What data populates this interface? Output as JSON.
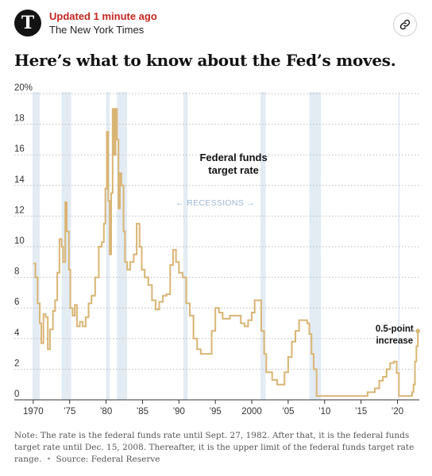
{
  "header": {
    "updated": "Updated 1 minute ago",
    "publisher": "The New York Times",
    "logo_glyph": "T",
    "link_icon": "link-icon"
  },
  "headline": "Here’s what to know about the Fed’s moves.",
  "chart_data": {
    "type": "line",
    "title": "",
    "series_label": "Federal funds target rate",
    "series_label_lines": [
      "Federal funds",
      "target rate"
    ],
    "recession_label": "RECESSIONS",
    "annotation_lines": [
      "0.5-point",
      "increase"
    ],
    "line_color": "#d9b574",
    "recession_color": "#e3ebf3",
    "xlabel": "",
    "ylabel": "",
    "xlim": [
      1969.8,
      2023.0
    ],
    "ylim": [
      0,
      20
    ],
    "grid": "horizontal-dotted",
    "y_ticks": [
      0,
      2,
      4,
      6,
      8,
      10,
      12,
      14,
      16,
      18,
      20
    ],
    "y_tick_labels": [
      "0",
      "2",
      "4",
      "6",
      "8",
      "10",
      "12",
      "14",
      "16",
      "18",
      "20%"
    ],
    "x_ticks": [
      1970,
      1975,
      1980,
      1985,
      1990,
      1995,
      2000,
      2005,
      2010,
      2015,
      2020
    ],
    "x_tick_labels": [
      "1970",
      "’75",
      "’80",
      "’85",
      "’90",
      "’95",
      "2000",
      "’05",
      "’10",
      "’15",
      "’20"
    ],
    "recessions": [
      [
        1969.9,
        1970.9
      ],
      [
        1973.9,
        1975.2
      ],
      [
        1980.0,
        1980.5
      ],
      [
        1981.5,
        1982.9
      ],
      [
        1990.6,
        1991.2
      ],
      [
        2001.2,
        2001.9
      ],
      [
        2007.9,
        2009.5
      ],
      [
        2020.1,
        2020.3
      ]
    ],
    "x": [
      1970.0,
      1970.3,
      1970.6,
      1970.9,
      1971.1,
      1971.4,
      1971.7,
      1972.0,
      1972.3,
      1972.7,
      1973.0,
      1973.3,
      1973.6,
      1973.9,
      1974.1,
      1974.4,
      1974.6,
      1974.9,
      1975.1,
      1975.4,
      1975.7,
      1976.0,
      1976.4,
      1976.8,
      1977.2,
      1977.6,
      1978.0,
      1978.5,
      1979.0,
      1979.4,
      1979.7,
      1979.9,
      1980.1,
      1980.3,
      1980.5,
      1980.7,
      1980.9,
      1981.1,
      1981.3,
      1981.5,
      1981.7,
      1981.9,
      1982.1,
      1982.4,
      1982.6,
      1982.9,
      1983.3,
      1983.8,
      1984.2,
      1984.6,
      1984.9,
      1985.3,
      1985.8,
      1986.3,
      1986.8,
      1987.3,
      1987.8,
      1988.3,
      1988.8,
      1989.2,
      1989.6,
      1990.0,
      1990.5,
      1991.0,
      1991.5,
      1992.0,
      1992.5,
      1993.0,
      1994.0,
      1994.5,
      1995.0,
      1995.5,
      1996.0,
      1997.0,
      1998.0,
      1998.5,
      1999.0,
      1999.5,
      2000.0,
      2000.4,
      2000.9,
      2001.3,
      2001.7,
      2002.0,
      2002.8,
      2003.5,
      2004.0,
      2004.5,
      2005.0,
      2005.5,
      2006.0,
      2006.5,
      2007.0,
      2007.6,
      2007.9,
      2008.2,
      2008.5,
      2008.9,
      2009.5,
      2012.0,
      2015.0,
      2015.9,
      2016.9,
      2017.5,
      2018.0,
      2018.5,
      2019.0,
      2019.5,
      2019.9,
      2020.2,
      2020.6,
      2021.0,
      2021.5,
      2022.0,
      2022.2,
      2022.4,
      2022.6,
      2022.8
    ],
    "y": [
      8.9,
      8.0,
      6.3,
      5.0,
      3.7,
      5.6,
      5.4,
      3.3,
      4.6,
      5.8,
      6.5,
      8.3,
      10.5,
      10.0,
      9.0,
      12.9,
      11.0,
      8.5,
      6.0,
      5.5,
      6.2,
      4.8,
      5.1,
      4.8,
      5.4,
      6.3,
      6.8,
      8.0,
      10.0,
      10.3,
      11.5,
      13.8,
      17.5,
      13.0,
      9.5,
      13.5,
      19.0,
      16.0,
      19.0,
      17.0,
      12.5,
      14.8,
      14.0,
      11.0,
      9.0,
      8.5,
      9.0,
      9.5,
      11.5,
      10.0,
      8.5,
      8.0,
      7.5,
      6.5,
      5.9,
      6.4,
      6.8,
      6.9,
      8.8,
      9.8,
      9.0,
      8.3,
      8.0,
      6.3,
      5.5,
      4.0,
      3.3,
      3.0,
      3.0,
      4.5,
      6.0,
      5.7,
      5.3,
      5.5,
      5.5,
      5.0,
      4.8,
      5.2,
      5.7,
      6.5,
      6.5,
      4.5,
      3.0,
      1.8,
      1.3,
      1.0,
      1.0,
      1.8,
      2.8,
      3.8,
      4.5,
      5.2,
      5.2,
      5.0,
      4.3,
      3.0,
      2.0,
      0.25,
      0.25,
      0.25,
      0.25,
      0.5,
      0.75,
      1.25,
      1.5,
      2.0,
      2.4,
      2.5,
      1.75,
      0.25,
      0.25,
      0.25,
      0.25,
      0.5,
      1.0,
      2.5,
      3.5,
      4.5
    ]
  },
  "note": {
    "text": "Note: The rate is the federal funds rate until Sept. 27, 1982. After that, it is the federal funds target rate until Dec. 15, 2008. Thereafter, it is the upper limit of the federal funds target rate range.",
    "source": "Source: Federal Reserve"
  }
}
